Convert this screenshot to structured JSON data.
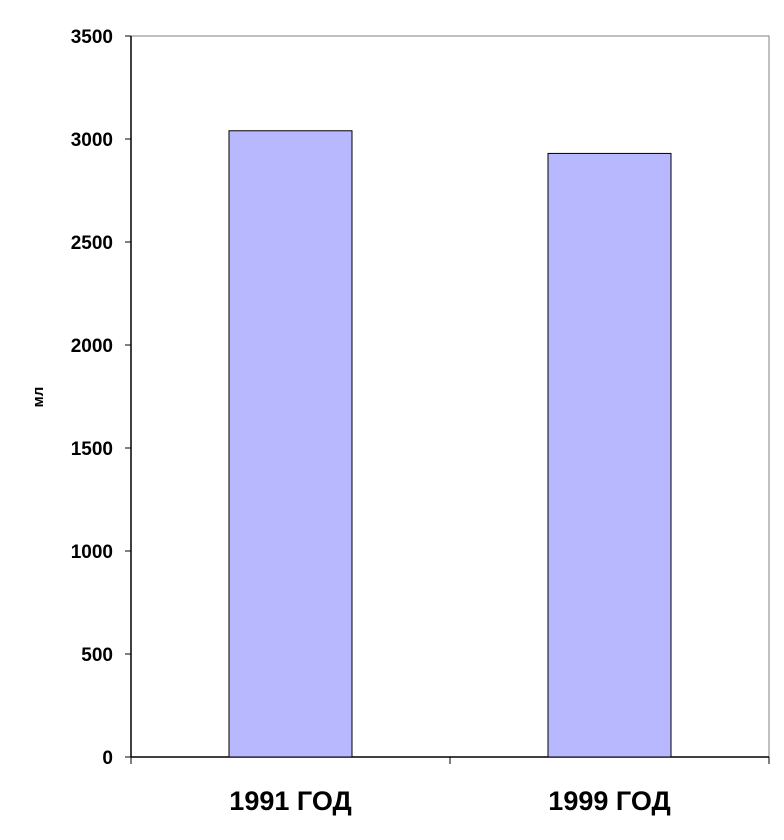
{
  "chart_data": {
    "type": "bar",
    "categories": [
      "1991 ГОД",
      "1999 ГОД"
    ],
    "values": [
      3040,
      2930
    ],
    "title": "",
    "xlabel": "",
    "ylabel": "мл",
    "ylim": [
      0,
      3500
    ],
    "yticks": [
      0,
      500,
      1000,
      1500,
      2000,
      2500,
      3000,
      3500
    ],
    "grid": false,
    "bar_color": "#b8b8ff",
    "bar_edge_color": "#000000"
  }
}
